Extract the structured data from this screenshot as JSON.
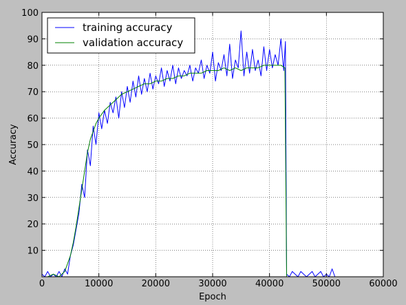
{
  "chart_data": {
    "type": "line",
    "title": "",
    "xlabel": "Epoch",
    "ylabel": "Accuracy",
    "xlim": [
      0,
      60000
    ],
    "ylim": [
      0,
      100
    ],
    "xticks": [
      0,
      10000,
      20000,
      30000,
      40000,
      50000,
      60000
    ],
    "yticks": [
      10,
      20,
      30,
      40,
      50,
      60,
      70,
      80,
      90,
      100
    ],
    "grid": true,
    "legend_position": "top-left",
    "series": [
      {
        "name": "training accuracy",
        "color": "#0000ff",
        "x": [
          0,
          500,
          1000,
          1500,
          2000,
          2500,
          3000,
          3500,
          4000,
          4500,
          5000,
          5500,
          6000,
          6500,
          7000,
          7500,
          8000,
          8500,
          9000,
          9500,
          10000,
          10500,
          11000,
          11500,
          12000,
          12500,
          13000,
          13500,
          14000,
          14500,
          15000,
          15500,
          16000,
          16500,
          17000,
          17500,
          18000,
          18500,
          19000,
          19500,
          20000,
          20500,
          21000,
          21500,
          22000,
          22500,
          23000,
          23500,
          24000,
          24500,
          25000,
          25500,
          26000,
          26500,
          27000,
          27500,
          28000,
          28500,
          29000,
          29500,
          30000,
          30500,
          31000,
          31500,
          32000,
          32500,
          33000,
          33500,
          34000,
          34500,
          35000,
          35500,
          36000,
          36500,
          37000,
          37500,
          38000,
          38500,
          39000,
          39500,
          40000,
          40500,
          41000,
          41500,
          42000,
          42500,
          42800,
          43000,
          43500,
          44000,
          44500,
          45000,
          45500,
          46000,
          46500,
          47000,
          47500,
          48000,
          48500,
          49000,
          49500,
          50000,
          50500,
          51000,
          51500
        ],
        "y": [
          1,
          0,
          2,
          0,
          1,
          0,
          2,
          0,
          3,
          1,
          8,
          12,
          18,
          24,
          35,
          30,
          48,
          42,
          57,
          50,
          62,
          56,
          63,
          58,
          66,
          62,
          68,
          60,
          70,
          64,
          72,
          66,
          74,
          68,
          76,
          69,
          75,
          70,
          77,
          71,
          76,
          73,
          79,
          72,
          78,
          74,
          80,
          73,
          79,
          75,
          78,
          76,
          80,
          74,
          79,
          77,
          82,
          75,
          80,
          77,
          85,
          74,
          81,
          78,
          84,
          76,
          88,
          75,
          82,
          79,
          93,
          76,
          85,
          77,
          86,
          78,
          82,
          76,
          87,
          78,
          86,
          79,
          84,
          80,
          90,
          78,
          89,
          1,
          0,
          2,
          1,
          0,
          2,
          1,
          0,
          1,
          2,
          0,
          1,
          2,
          0,
          1,
          0,
          3,
          0
        ]
      },
      {
        "name": "validation accuracy",
        "color": "#008000",
        "x": [
          0,
          1000,
          2000,
          3000,
          4000,
          5000,
          5500,
          6000,
          6500,
          7000,
          7500,
          8000,
          8500,
          9000,
          9500,
          10000,
          11000,
          12000,
          13000,
          14000,
          15000,
          16000,
          17000,
          18000,
          19000,
          20000,
          21000,
          22000,
          23000,
          24000,
          25000,
          26000,
          27000,
          28000,
          29000,
          30000,
          31000,
          32000,
          33000,
          34000,
          35000,
          36000,
          37000,
          38000,
          39000,
          40000,
          41000,
          42000,
          42700,
          43000
        ],
        "y": [
          0,
          0,
          1,
          0,
          2,
          8,
          13,
          19,
          26,
          33,
          40,
          47,
          52,
          55,
          58,
          60,
          63,
          65,
          67,
          69,
          70,
          71,
          72,
          73,
          73,
          74,
          74,
          75,
          75,
          76,
          76,
          77,
          77,
          77,
          78,
          78,
          78,
          79,
          78,
          79,
          78,
          79,
          79,
          79,
          80,
          80,
          80,
          80,
          79,
          0
        ]
      }
    ]
  }
}
